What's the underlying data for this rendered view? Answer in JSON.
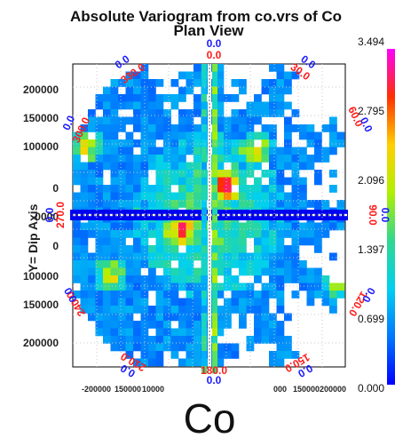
{
  "title_line1": "Absolute Variogram from co.vrs of Co",
  "title_line2": "Plan View",
  "big_label": "Co",
  "chart_data": {
    "type": "heatmap",
    "title": "Absolute Variogram from co.vrs of Co",
    "subtitle": "Plan View",
    "ylabel": "Y= Dip Axis",
    "y_ticks": [
      "200000",
      "150000",
      "100000",
      "0",
      "0000",
      "0",
      "100000",
      "150000",
      "200000"
    ],
    "x_ticks": [
      "-200000",
      "150000",
      "10000",
      "000",
      "150000",
      "200000"
    ],
    "colorbar": {
      "ticks": [
        "3.494",
        "2.795",
        "2.096",
        "1.397",
        "0.699",
        "0.000"
      ],
      "min": 0.0,
      "max": 3.494,
      "colors": [
        "#0000ff",
        "#0077ff",
        "#00d0f0",
        "#30d890",
        "#b0f000",
        "#ffd000",
        "#ff3000",
        "#ff00ff"
      ]
    },
    "angle_labels": [
      {
        "angle": 0,
        "top": "0.0",
        "bottom": "0.0"
      },
      {
        "angle": 30,
        "top": "30.0",
        "bottom": "0.0"
      },
      {
        "angle": 60,
        "top": "60.0",
        "bottom": "0.0"
      },
      {
        "angle": 90,
        "top": "90.0",
        "bottom": "0.0"
      },
      {
        "angle": 120,
        "top": "120.0",
        "bottom": "0.0"
      },
      {
        "angle": 150,
        "top": "150.0",
        "bottom": "0.0"
      },
      {
        "angle": 180,
        "top": "180.0",
        "bottom": "0.0"
      },
      {
        "angle": 210,
        "top": "210.0",
        "bottom": "0.0"
      },
      {
        "angle": 240,
        "top": "240.0",
        "bottom": "0.0"
      },
      {
        "angle": 270,
        "top": "270.0",
        "bottom": "0.0"
      },
      {
        "angle": 300,
        "top": "300.0",
        "bottom": "0.0"
      },
      {
        "angle": 330,
        "top": "330.0",
        "bottom": "0.0"
      }
    ]
  }
}
